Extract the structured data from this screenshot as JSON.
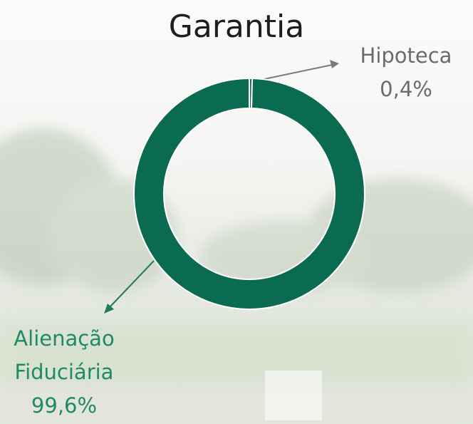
{
  "chart_data": {
    "type": "donut",
    "title": "Garantia",
    "categories": [
      "Hipoteca",
      "Alienação Fiduciária"
    ],
    "values": [
      0.4,
      99.6
    ],
    "value_labels": [
      "0,4%",
      "99,6%"
    ],
    "colors": [
      "#0b6b50",
      "#0b6b50"
    ],
    "label_colors": [
      "#6b6b6b",
      "#1f8a66"
    ]
  }
}
